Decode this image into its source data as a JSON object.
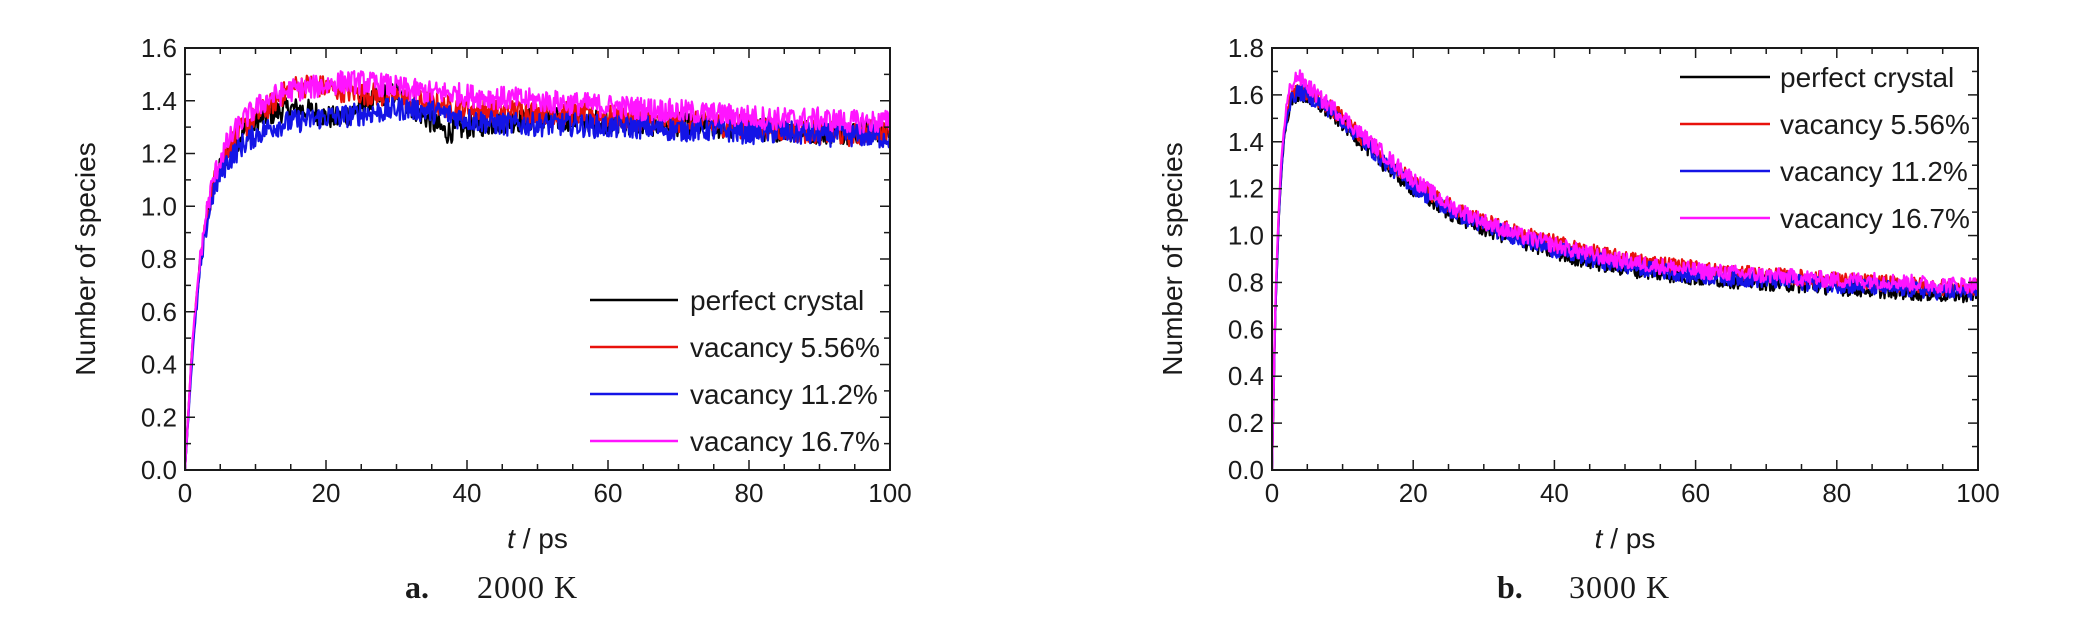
{
  "chart_data": [
    {
      "type": "line",
      "panel_letter": "a.",
      "caption": "2000 K",
      "xlabel_italic": "t",
      "xlabel_unit": " / ps",
      "ylabel": "Number of species",
      "xlim": [
        0,
        100
      ],
      "ylim": [
        0,
        1.6
      ],
      "xticks": [
        0,
        20,
        40,
        60,
        80,
        100
      ],
      "yticks": [
        0.0,
        0.2,
        0.4,
        0.6,
        0.8,
        1.0,
        1.2,
        1.4,
        1.6
      ],
      "ytick_labels": [
        "0.0",
        "0.2",
        "0.4",
        "0.6",
        "0.8",
        "1.0",
        "1.2",
        "1.4",
        "1.6"
      ],
      "legend_position": "bottom-right",
      "grid": false,
      "series": [
        {
          "name": "perfect crystal",
          "color": "#000000",
          "x": [
            0,
            1,
            2,
            3,
            4,
            5,
            6,
            8,
            10,
            12,
            15,
            18,
            20,
            22,
            25,
            28,
            30,
            32,
            35,
            37,
            40,
            45,
            50,
            55,
            60,
            65,
            70,
            75,
            80,
            85,
            90,
            95,
            100
          ],
          "y": [
            0,
            0.45,
            0.75,
            0.95,
            1.08,
            1.15,
            1.2,
            1.27,
            1.32,
            1.35,
            1.37,
            1.36,
            1.34,
            1.33,
            1.38,
            1.42,
            1.43,
            1.38,
            1.32,
            1.28,
            1.3,
            1.32,
            1.33,
            1.33,
            1.32,
            1.31,
            1.31,
            1.3,
            1.29,
            1.29,
            1.28,
            1.28,
            1.29
          ]
        },
        {
          "name": "vacancy 5.56%",
          "color": "#e8120c",
          "x": [
            0,
            1,
            2,
            3,
            4,
            5,
            6,
            8,
            10,
            12,
            15,
            18,
            20,
            22,
            25,
            28,
            30,
            32,
            35,
            37,
            40,
            45,
            50,
            55,
            60,
            65,
            70,
            75,
            80,
            85,
            90,
            95,
            100
          ],
          "y": [
            0,
            0.45,
            0.75,
            0.95,
            1.08,
            1.16,
            1.22,
            1.29,
            1.34,
            1.38,
            1.45,
            1.46,
            1.45,
            1.44,
            1.43,
            1.42,
            1.41,
            1.4,
            1.39,
            1.38,
            1.37,
            1.36,
            1.36,
            1.35,
            1.34,
            1.33,
            1.32,
            1.31,
            1.3,
            1.29,
            1.28,
            1.27,
            1.3
          ]
        },
        {
          "name": "vacancy 11.2%",
          "color": "#1414e6",
          "x": [
            0,
            1,
            2,
            3,
            4,
            5,
            6,
            8,
            10,
            12,
            15,
            18,
            20,
            22,
            25,
            28,
            30,
            32,
            35,
            37,
            40,
            45,
            50,
            55,
            60,
            65,
            70,
            75,
            80,
            85,
            90,
            95,
            100
          ],
          "y": [
            0,
            0.42,
            0.72,
            0.92,
            1.05,
            1.12,
            1.17,
            1.23,
            1.27,
            1.3,
            1.32,
            1.33,
            1.34,
            1.34,
            1.35,
            1.36,
            1.37,
            1.37,
            1.36,
            1.35,
            1.33,
            1.31,
            1.31,
            1.31,
            1.3,
            1.3,
            1.29,
            1.29,
            1.28,
            1.28,
            1.27,
            1.27,
            1.26
          ]
        },
        {
          "name": "vacancy 16.7%",
          "color": "#ff14ff",
          "x": [
            0,
            1,
            2,
            3,
            4,
            5,
            6,
            8,
            10,
            12,
            15,
            18,
            20,
            22,
            25,
            28,
            30,
            32,
            35,
            37,
            40,
            45,
            50,
            55,
            60,
            65,
            70,
            75,
            80,
            85,
            90,
            95,
            100
          ],
          "y": [
            0,
            0.46,
            0.77,
            0.97,
            1.1,
            1.18,
            1.24,
            1.32,
            1.37,
            1.41,
            1.44,
            1.45,
            1.46,
            1.47,
            1.47,
            1.46,
            1.45,
            1.44,
            1.43,
            1.43,
            1.42,
            1.41,
            1.4,
            1.39,
            1.38,
            1.37,
            1.36,
            1.35,
            1.34,
            1.33,
            1.33,
            1.32,
            1.32
          ]
        }
      ]
    },
    {
      "type": "line",
      "panel_letter": "b.",
      "caption": "3000 K",
      "xlabel_italic": "t",
      "xlabel_unit": " / ps",
      "ylabel": "Number of species",
      "xlim": [
        0,
        100
      ],
      "ylim": [
        0,
        1.8
      ],
      "xticks": [
        0,
        20,
        40,
        60,
        80,
        100
      ],
      "yticks": [
        0.0,
        0.2,
        0.4,
        0.6,
        0.8,
        1.0,
        1.2,
        1.4,
        1.6,
        1.8
      ],
      "ytick_labels": [
        "0.0",
        "0.2",
        "0.4",
        "0.6",
        "0.8",
        "1.0",
        "1.2",
        "1.4",
        "1.6",
        "1.8"
      ],
      "legend_position": "top-right",
      "grid": false,
      "series": [
        {
          "name": "perfect crystal",
          "color": "#000000",
          "x": [
            0,
            0.5,
            1,
            1.5,
            2,
            2.5,
            3,
            3.5,
            4,
            5,
            6,
            7,
            8,
            10,
            12,
            15,
            18,
            20,
            25,
            30,
            35,
            40,
            45,
            50,
            55,
            60,
            65,
            70,
            75,
            80,
            85,
            90,
            95,
            100
          ],
          "y": [
            0,
            0.7,
            1.1,
            1.35,
            1.48,
            1.55,
            1.58,
            1.6,
            1.6,
            1.59,
            1.57,
            1.55,
            1.53,
            1.48,
            1.42,
            1.33,
            1.25,
            1.2,
            1.1,
            1.03,
            0.98,
            0.93,
            0.89,
            0.86,
            0.84,
            0.82,
            0.81,
            0.8,
            0.79,
            0.78,
            0.77,
            0.76,
            0.75,
            0.75
          ]
        },
        {
          "name": "vacancy 5.56%",
          "color": "#e8120c",
          "x": [
            0,
            0.5,
            1,
            1.5,
            2,
            2.5,
            3,
            3.5,
            4,
            5,
            6,
            7,
            8,
            10,
            12,
            15,
            18,
            20,
            25,
            30,
            35,
            40,
            45,
            50,
            55,
            60,
            65,
            70,
            75,
            80,
            85,
            90,
            95,
            100
          ],
          "y": [
            0,
            0.72,
            1.12,
            1.37,
            1.5,
            1.57,
            1.6,
            1.62,
            1.62,
            1.61,
            1.59,
            1.57,
            1.55,
            1.5,
            1.44,
            1.36,
            1.28,
            1.23,
            1.13,
            1.06,
            1.01,
            0.97,
            0.93,
            0.9,
            0.88,
            0.86,
            0.84,
            0.83,
            0.82,
            0.81,
            0.8,
            0.79,
            0.78,
            0.78
          ]
        },
        {
          "name": "vacancy 11.2%",
          "color": "#1414e6",
          "x": [
            0,
            0.5,
            1,
            1.5,
            2,
            2.5,
            3,
            3.5,
            4,
            5,
            6,
            7,
            8,
            10,
            12,
            15,
            18,
            20,
            25,
            30,
            35,
            40,
            45,
            50,
            55,
            60,
            65,
            70,
            75,
            80,
            85,
            90,
            95,
            100
          ],
          "y": [
            0,
            0.7,
            1.1,
            1.36,
            1.49,
            1.56,
            1.59,
            1.61,
            1.61,
            1.6,
            1.58,
            1.56,
            1.54,
            1.49,
            1.43,
            1.34,
            1.26,
            1.21,
            1.11,
            1.04,
            0.99,
            0.94,
            0.9,
            0.87,
            0.85,
            0.83,
            0.82,
            0.81,
            0.8,
            0.79,
            0.78,
            0.77,
            0.76,
            0.76
          ]
        },
        {
          "name": "vacancy 16.7%",
          "color": "#ff14ff",
          "x": [
            0,
            0.5,
            1,
            1.5,
            2,
            2.5,
            3,
            3.5,
            4,
            5,
            6,
            7,
            8,
            10,
            12,
            15,
            18,
            20,
            25,
            30,
            35,
            40,
            45,
            50,
            55,
            60,
            65,
            70,
            75,
            80,
            85,
            90,
            95,
            100
          ],
          "y": [
            0,
            0.74,
            1.15,
            1.4,
            1.54,
            1.62,
            1.66,
            1.68,
            1.67,
            1.64,
            1.61,
            1.58,
            1.56,
            1.51,
            1.45,
            1.37,
            1.29,
            1.24,
            1.13,
            1.06,
            1.0,
            0.96,
            0.92,
            0.89,
            0.87,
            0.85,
            0.84,
            0.83,
            0.82,
            0.81,
            0.81,
            0.8,
            0.79,
            0.79
          ]
        }
      ]
    }
  ]
}
